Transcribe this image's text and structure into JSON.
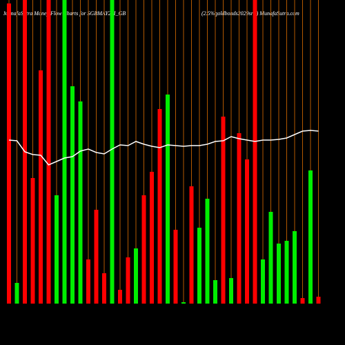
{
  "chart_data": {
    "type": "bar",
    "title": "MunafaSutra  Money Flow  Charts for SGBMAY29I_GB",
    "subtitle": "(2.5%goldbonds2029sr-i) MunafaSutra.com",
    "categories": [
      null,
      null,
      null,
      null,
      null,
      null,
      null,
      null,
      null,
      null,
      null,
      null,
      null,
      null,
      null,
      null,
      null,
      null,
      null,
      null,
      null,
      null,
      null,
      null,
      null,
      null,
      null,
      null,
      null,
      null,
      null,
      null,
      null,
      null,
      null,
      null,
      null,
      null,
      null,
      null
    ],
    "values": [
      435,
      30,
      440,
      182,
      338,
      440,
      157,
      440,
      315,
      293,
      64,
      136,
      44,
      440,
      20,
      67,
      80,
      157,
      191,
      282,
      303,
      107,
      2,
      170,
      110,
      152,
      34,
      271,
      37,
      247,
      209,
      440,
      64,
      133,
      87,
      91,
      105,
      8,
      193,
      10
    ],
    "bar_colors": [
      "#ff0000",
      "#00ee00",
      "#ff0000",
      "#ff0000",
      "#ff0000",
      "#ff0000",
      "#00ee00",
      "#00ee00",
      "#00ee00",
      "#00ee00",
      "#ff0000",
      "#ff0000",
      "#ff0000",
      "#00ee00",
      "#ff0000",
      "#ff0000",
      "#00ee00",
      "#ff0000",
      "#ff0000",
      "#ff0000",
      "#00ee00",
      "#ff0000",
      "#00ee00",
      "#ff0000",
      "#00ee00",
      "#00ee00",
      "#00ee00",
      "#ff0000",
      "#00ee00",
      "#ff0000",
      "#ff0000",
      "#ff0000",
      "#00ee00",
      "#00ee00",
      "#00ee00",
      "#00ee00",
      "#00ee00",
      "#ff0000",
      "#00ee00",
      "#ff0000"
    ],
    "line_values": [
      237,
      236,
      220,
      216,
      215,
      201,
      206,
      211,
      213,
      221,
      224,
      219,
      217,
      224,
      230,
      229,
      235,
      231,
      228,
      226,
      230,
      229,
      228,
      229,
      229,
      231,
      235,
      236,
      242,
      239,
      237,
      235,
      237,
      237,
      238,
      240,
      245,
      250,
      251,
      250
    ],
    "line_color": "#ffffff",
    "grid_color": "#b35900",
    "ylim": [
      0,
      440
    ]
  }
}
